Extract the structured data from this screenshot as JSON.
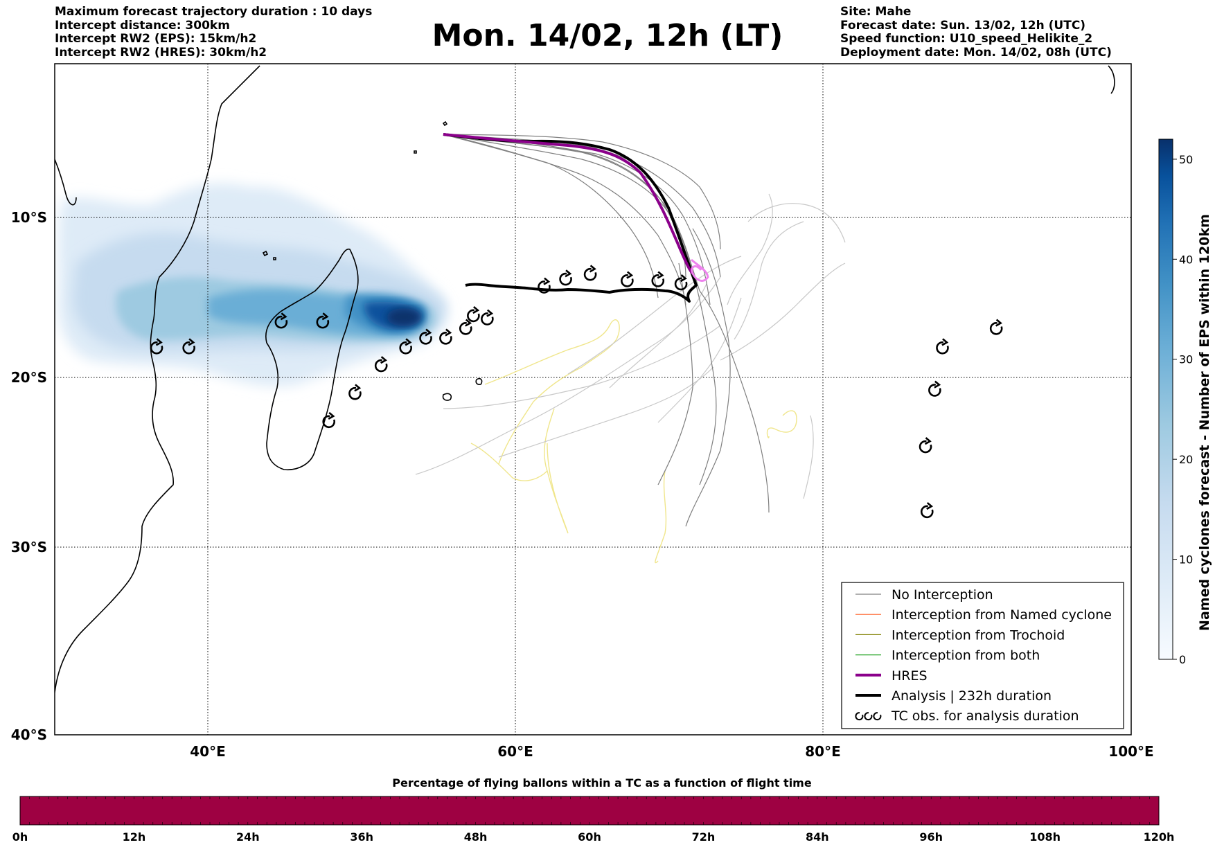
{
  "header": {
    "left_lines": [
      "Maximum forecast trajectory duration : 10 days",
      "Intercept distance: 300km",
      "Intercept RW2 (EPS):  15km/h2",
      "Intercept RW2 (HRES): 30km/h2"
    ],
    "title": "Mon. 14/02, 12h (LT)",
    "right_lines": [
      "Site: Mahe",
      "Forecast date: Sun. 13/02, 12h (UTC)",
      "Speed function: U10_speed_Helikite_2",
      "Deployment date: Mon. 14/02, 08h (UTC)"
    ]
  },
  "map": {
    "lon_range": [
      30,
      100
    ],
    "lat_range": [
      -40,
      0
    ],
    "lat_ticks": [
      {
        "lat": -10,
        "label": "10°S"
      },
      {
        "lat": -20,
        "label": "20°S"
      },
      {
        "lat": -30,
        "label": "30°S"
      },
      {
        "lat": -40,
        "label": "40°S"
      }
    ],
    "lon_ticks": [
      {
        "lon": 40,
        "label": "40°E"
      },
      {
        "lon": 60,
        "label": "60°E"
      },
      {
        "lon": 80,
        "label": "80°E"
      },
      {
        "lon": 100,
        "label": "100°E"
      }
    ],
    "tc_obs": [
      [
        36.6,
        -18.2
      ],
      [
        38.7,
        -18.2
      ],
      [
        44.7,
        -16.6
      ],
      [
        47.4,
        -16.6
      ],
      [
        49.5,
        -21.0
      ],
      [
        47.8,
        -22.7
      ],
      [
        51.2,
        -19.3
      ],
      [
        52.8,
        -18.2
      ],
      [
        54.1,
        -17.6
      ],
      [
        55.4,
        -17.6
      ],
      [
        56.7,
        -17.0
      ],
      [
        57.2,
        -16.2
      ],
      [
        58.1,
        -16.4
      ],
      [
        61.8,
        -14.4
      ],
      [
        63.2,
        -13.9
      ],
      [
        64.8,
        -13.6
      ],
      [
        67.2,
        -14.0
      ],
      [
        69.2,
        -14.0
      ],
      [
        70.7,
        -14.2
      ],
      [
        87.7,
        -18.2
      ],
      [
        91.2,
        -17.0
      ],
      [
        87.2,
        -20.8
      ],
      [
        86.6,
        -24.2
      ],
      [
        86.7,
        -28.0
      ]
    ]
  },
  "legend": {
    "items": [
      {
        "label": "No Interception",
        "color": "#808080",
        "width": 1.2
      },
      {
        "label": "Interception from Named cyclone",
        "color": "#ff5a1f",
        "width": 1.2
      },
      {
        "label": "Interception from Trochoid",
        "color": "#808000",
        "width": 1.2
      },
      {
        "label": "Interception from both",
        "color": "#1aa01a",
        "width": 1.2
      },
      {
        "label": "HRES",
        "color": "#8b008b",
        "width": 4
      },
      {
        "label": "Analysis | 232h duration",
        "color": "#000000",
        "width": 4
      },
      {
        "label": "TC obs. for analysis duration",
        "color": "#000000",
        "width": 0
      }
    ]
  },
  "colorbar": {
    "label": "Named cyclones forecast - Number of EPS within 120km",
    "range": [
      0,
      52
    ],
    "ticks": [
      "0",
      "10",
      "20",
      "30",
      "40",
      "50"
    ]
  },
  "flight_bar": {
    "title": "Percentage of flying ballons within a TC as a function of flight time",
    "color": "#9e0142",
    "ticks": [
      "0h",
      "12h",
      "24h",
      "36h",
      "48h",
      "60h",
      "72h",
      "84h",
      "96h",
      "108h",
      "120h"
    ]
  }
}
